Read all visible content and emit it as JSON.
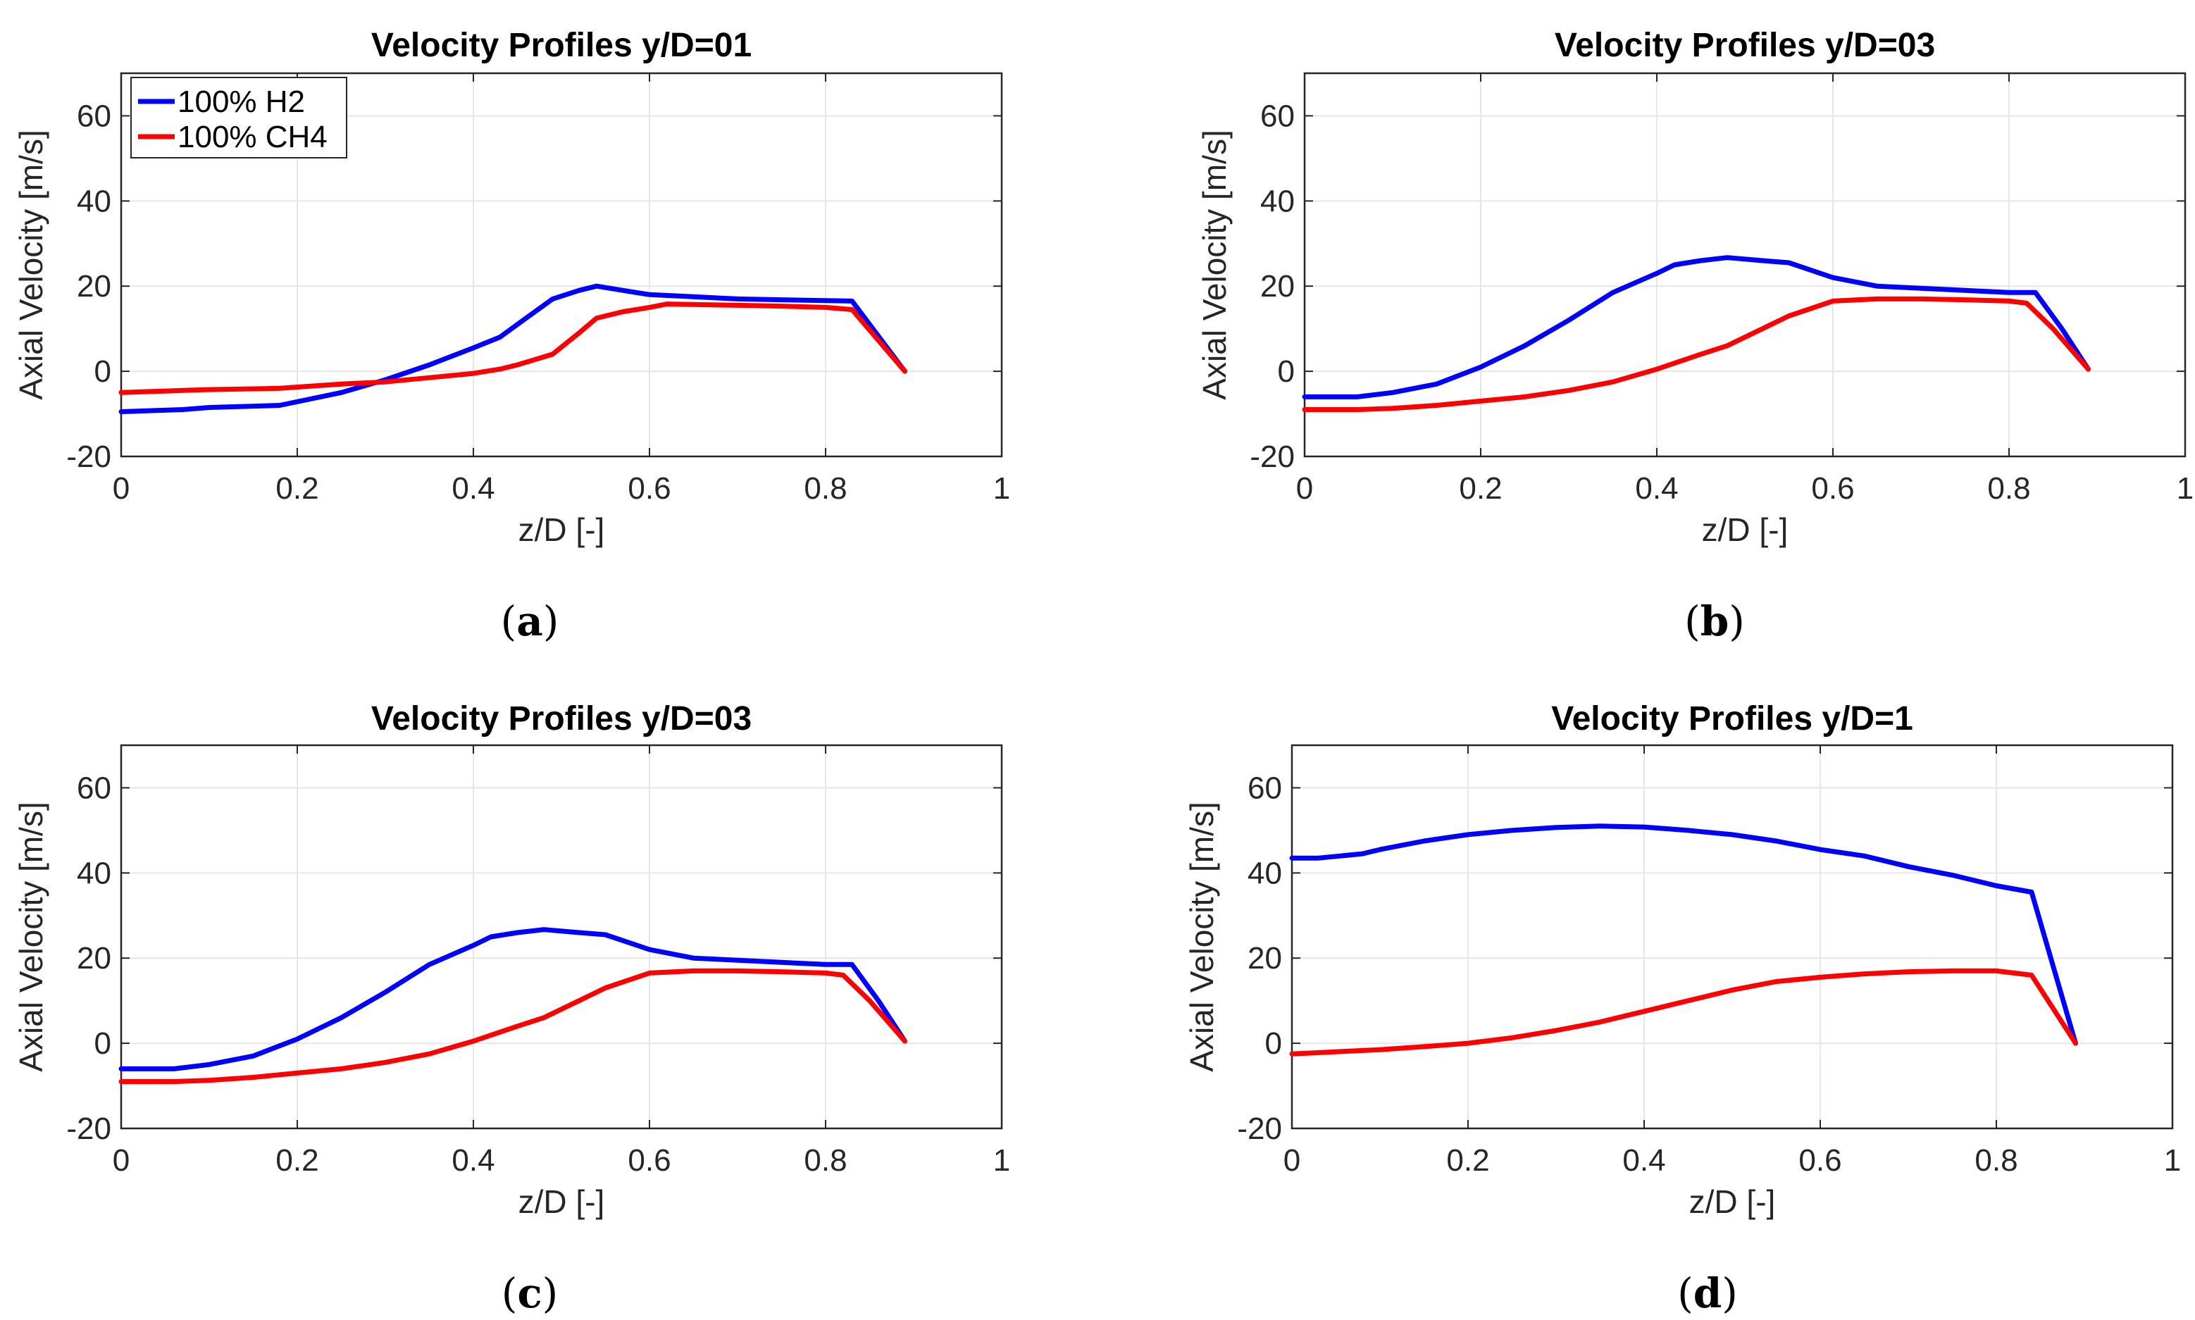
{
  "colors": {
    "h2": "#0000ff",
    "ch4": "#ff0000"
  },
  "legend": [
    {
      "label": "100% H2",
      "color": "#0000ff"
    },
    {
      "label": "100% CH4",
      "color": "#ff0000"
    }
  ],
  "chart_data": [
    {
      "type": "line",
      "panel": "a",
      "caption_letter": "a",
      "title": "Velocity Profiles y/D=01",
      "xlabel": "z/D [-]",
      "ylabel": "Axial Velocity [m/s]",
      "xlim": [
        0,
        1
      ],
      "ylim": [
        -20,
        70
      ],
      "xticks": [
        0,
        0.2,
        0.4,
        0.6,
        0.8,
        1
      ],
      "xtick_labels": [
        "0",
        "0.2",
        "0.4",
        "0.6",
        "0.8",
        "1"
      ],
      "yticks": [
        -20,
        0,
        20,
        40,
        60
      ],
      "ytick_labels": [
        "-20",
        "0",
        "20",
        "40",
        "60"
      ],
      "grid": true,
      "legend_visible": true,
      "legend_position": "top-left",
      "series": [
        {
          "name": "100% H2",
          "color": "#0000ff",
          "x": [
            0,
            0.07,
            0.1,
            0.18,
            0.25,
            0.3,
            0.35,
            0.4,
            0.43,
            0.45,
            0.49,
            0.52,
            0.54,
            0.57,
            0.6,
            0.65,
            0.7,
            0.75,
            0.8,
            0.83,
            0.89
          ],
          "y": [
            -9.5,
            -9,
            -8.5,
            -8,
            -5,
            -2,
            1.5,
            5.5,
            8,
            11,
            17,
            19,
            20,
            19,
            18,
            17.5,
            17,
            16.8,
            16.6,
            16.5,
            0
          ]
        },
        {
          "name": "100% CH4",
          "color": "#ff0000",
          "x": [
            0,
            0.07,
            0.1,
            0.18,
            0.25,
            0.3,
            0.35,
            0.4,
            0.43,
            0.45,
            0.49,
            0.52,
            0.54,
            0.57,
            0.6,
            0.62,
            0.7,
            0.75,
            0.8,
            0.83,
            0.89
          ],
          "y": [
            -5,
            -4.5,
            -4.3,
            -4,
            -3,
            -2.5,
            -1.5,
            -0.5,
            0.5,
            1.5,
            4,
            9,
            12.5,
            14,
            15,
            15.8,
            15.5,
            15.3,
            15,
            14.5,
            0
          ]
        }
      ]
    },
    {
      "type": "line",
      "panel": "b",
      "caption_letter": "b",
      "title": "Velocity Profiles y/D=03",
      "xlabel": "z/D [-]",
      "ylabel": "Axial Velocity [m/s]",
      "xlim": [
        0,
        1
      ],
      "ylim": [
        -20,
        70
      ],
      "xticks": [
        0,
        0.2,
        0.4,
        0.6,
        0.8,
        1
      ],
      "xtick_labels": [
        "0",
        "0.2",
        "0.4",
        "0.6",
        "0.8",
        "1"
      ],
      "yticks": [
        -20,
        0,
        20,
        40,
        60
      ],
      "ytick_labels": [
        "-20",
        "0",
        "20",
        "40",
        "60"
      ],
      "grid": true,
      "legend_visible": false,
      "series": [
        {
          "name": "100% H2",
          "color": "#0000ff",
          "x": [
            0,
            0.06,
            0.1,
            0.15,
            0.2,
            0.25,
            0.3,
            0.35,
            0.4,
            0.42,
            0.45,
            0.48,
            0.52,
            0.55,
            0.6,
            0.65,
            0.7,
            0.75,
            0.8,
            0.83,
            0.86,
            0.89
          ],
          "y": [
            -6,
            -6,
            -5,
            -3,
            1,
            6,
            12,
            18.5,
            23,
            25,
            26,
            26.7,
            26,
            25.5,
            22,
            20,
            19.5,
            19,
            18.5,
            18.5,
            10,
            0.5
          ]
        },
        {
          "name": "100% CH4",
          "color": "#ff0000",
          "x": [
            0,
            0.06,
            0.1,
            0.15,
            0.2,
            0.25,
            0.3,
            0.35,
            0.4,
            0.45,
            0.48,
            0.52,
            0.55,
            0.6,
            0.65,
            0.7,
            0.75,
            0.8,
            0.82,
            0.85,
            0.89
          ],
          "y": [
            -9,
            -9,
            -8.7,
            -8,
            -7,
            -6,
            -4.5,
            -2.5,
            0.5,
            4,
            6,
            10,
            13,
            16.5,
            17,
            17,
            16.8,
            16.5,
            16,
            10,
            0.5
          ]
        }
      ]
    },
    {
      "type": "line",
      "panel": "c",
      "caption_letter": "c",
      "title": "Velocity Profiles y/D=03",
      "xlabel": "z/D [-]",
      "ylabel": "Axial Velocity [m/s]",
      "xlim": [
        0,
        1
      ],
      "ylim": [
        -20,
        70
      ],
      "xticks": [
        0,
        0.2,
        0.4,
        0.6,
        0.8,
        1
      ],
      "xtick_labels": [
        "0",
        "0.2",
        "0.4",
        "0.6",
        "0.8",
        "1"
      ],
      "yticks": [
        -20,
        0,
        20,
        40,
        60
      ],
      "ytick_labels": [
        "-20",
        "0",
        "20",
        "40",
        "60"
      ],
      "grid": true,
      "legend_visible": false,
      "series": [
        {
          "name": "100% H2",
          "color": "#0000ff",
          "x": [
            0,
            0.06,
            0.1,
            0.15,
            0.2,
            0.25,
            0.3,
            0.35,
            0.4,
            0.42,
            0.45,
            0.48,
            0.52,
            0.55,
            0.6,
            0.65,
            0.7,
            0.75,
            0.8,
            0.83,
            0.86,
            0.89
          ],
          "y": [
            -6,
            -6,
            -5,
            -3,
            1,
            6,
            12,
            18.5,
            23,
            25,
            26,
            26.7,
            26,
            25.5,
            22,
            20,
            19.5,
            19,
            18.5,
            18.5,
            10,
            0.5
          ]
        },
        {
          "name": "100% CH4",
          "color": "#ff0000",
          "x": [
            0,
            0.06,
            0.1,
            0.15,
            0.2,
            0.25,
            0.3,
            0.35,
            0.4,
            0.45,
            0.48,
            0.52,
            0.55,
            0.6,
            0.65,
            0.7,
            0.75,
            0.8,
            0.82,
            0.85,
            0.89
          ],
          "y": [
            -9,
            -9,
            -8.7,
            -8,
            -7,
            -6,
            -4.5,
            -2.5,
            0.5,
            4,
            6,
            10,
            13,
            16.5,
            17,
            17,
            16.8,
            16.5,
            16,
            10,
            0.5
          ]
        }
      ]
    },
    {
      "type": "line",
      "panel": "d",
      "caption_letter": "d",
      "title": "Velocity Profiles y/D=1",
      "xlabel": "z/D [-]",
      "ylabel": "Axial Velocity [m/s]",
      "xlim": [
        0,
        1
      ],
      "ylim": [
        -20,
        70
      ],
      "xticks": [
        0,
        0.2,
        0.4,
        0.6,
        0.8,
        1
      ],
      "xtick_labels": [
        "0",
        "0.2",
        "0.4",
        "0.6",
        "0.8",
        "1"
      ],
      "yticks": [
        -20,
        0,
        20,
        40,
        60
      ],
      "ytick_labels": [
        "-20",
        "0",
        "20",
        "40",
        "60"
      ],
      "grid": true,
      "legend_visible": false,
      "series": [
        {
          "name": "100% H2",
          "color": "#0000ff",
          "x": [
            0,
            0.03,
            0.08,
            0.1,
            0.15,
            0.2,
            0.25,
            0.3,
            0.35,
            0.4,
            0.45,
            0.5,
            0.55,
            0.6,
            0.65,
            0.7,
            0.75,
            0.8,
            0.84,
            0.89
          ],
          "y": [
            43.5,
            43.5,
            44.5,
            45.5,
            47.5,
            49,
            50,
            50.7,
            51,
            50.8,
            50,
            49,
            47.5,
            45.5,
            44,
            41.5,
            39.5,
            37,
            35.5,
            0
          ]
        },
        {
          "name": "100% CH4",
          "color": "#ff0000",
          "x": [
            0,
            0.05,
            0.1,
            0.15,
            0.2,
            0.25,
            0.3,
            0.35,
            0.4,
            0.45,
            0.5,
            0.55,
            0.6,
            0.65,
            0.7,
            0.75,
            0.8,
            0.84,
            0.89
          ],
          "y": [
            -2.5,
            -2,
            -1.5,
            -0.8,
            0,
            1.3,
            3,
            5,
            7.5,
            10,
            12.5,
            14.5,
            15.5,
            16.3,
            16.8,
            17,
            17,
            16,
            0
          ]
        }
      ]
    }
  ]
}
